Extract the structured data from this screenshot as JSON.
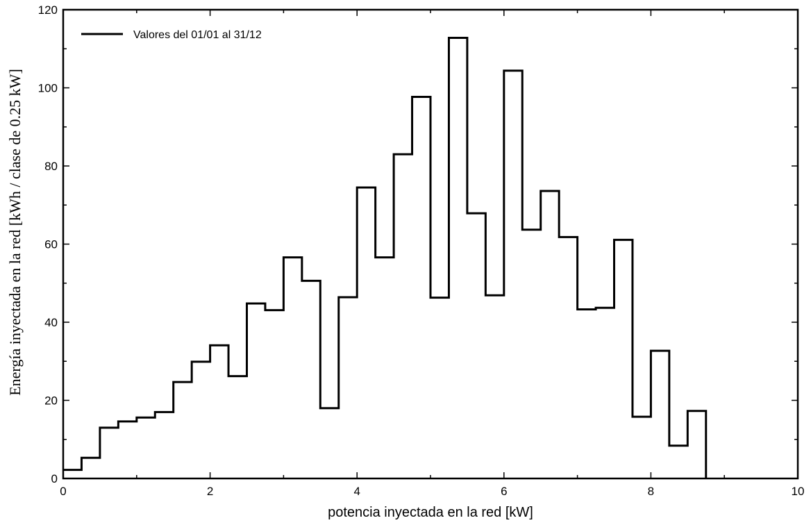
{
  "chart_data": {
    "type": "step",
    "xlabel": "potencia inyectada en la red [kW]",
    "ylabel": "Energía inyectada en la red [kWh / clase de 0.25 kW]",
    "xlim": [
      0,
      10
    ],
    "ylim": [
      0,
      120
    ],
    "xticks": [
      0,
      2,
      4,
      6,
      8,
      10
    ],
    "yticks": [
      0,
      20,
      40,
      60,
      80,
      100,
      120
    ],
    "grid": false,
    "legend_position": "top-left",
    "bin_width": 0.25,
    "series": [
      {
        "name": "Valores del 01/01 al 31/12",
        "color": "#000000",
        "x": [
          0,
          0.25,
          0.5,
          0.75,
          1.0,
          1.25,
          1.5,
          1.75,
          2.0,
          2.25,
          2.5,
          2.75,
          3.0,
          3.25,
          3.5,
          3.75,
          4.0,
          4.25,
          4.5,
          4.75,
          5.0,
          5.25,
          5.5,
          5.75,
          6.0,
          6.25,
          6.5,
          6.75,
          7.0,
          7.25,
          7.5,
          7.75,
          8.0,
          8.25,
          8.5
        ],
        "values": [
          2.2,
          5.3,
          13.0,
          14.6,
          15.6,
          17.0,
          24.7,
          29.9,
          34.1,
          26.2,
          44.8,
          43.1,
          56.6,
          50.6,
          18.0,
          46.4,
          74.5,
          56.6,
          83.0,
          97.7,
          46.3,
          112.8,
          67.9,
          46.9,
          104.4,
          63.7,
          73.6,
          61.8,
          43.3,
          43.7,
          61.1,
          15.8,
          32.7,
          8.4,
          17.3
        ]
      }
    ]
  }
}
